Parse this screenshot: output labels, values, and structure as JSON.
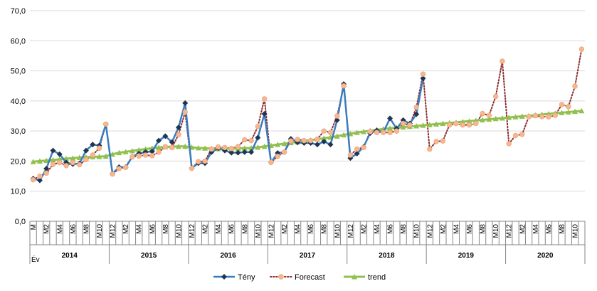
{
  "chart_data": {
    "type": "line",
    "ylim": [
      0,
      70
    ],
    "y_ticks": [
      "0,0",
      "10,0",
      "20,0",
      "30,0",
      "40,0",
      "50,0",
      "60,0",
      "70,0"
    ],
    "y_tick_values": [
      0,
      10,
      20,
      30,
      40,
      50,
      60,
      70
    ],
    "grid": true,
    "legend_position": "bottom",
    "x_axis_row_label": "Év",
    "years": [
      "2014",
      "2015",
      "2016",
      "2017",
      "2018",
      "2019",
      "2020"
    ],
    "month_labels": [
      "M",
      "",
      "M2",
      "",
      "M4",
      "",
      "M6",
      "",
      "M8",
      "",
      "M10",
      "",
      "M12",
      "",
      "M2",
      "",
      "M4",
      "",
      "M6",
      "",
      "M8",
      "",
      "M10",
      "",
      "M12",
      "",
      "M2",
      "",
      "M4",
      "",
      "M6",
      "",
      "M8",
      "",
      "M10",
      "",
      "M12",
      "",
      "M2",
      "",
      "M4",
      "",
      "M6",
      "",
      "M8",
      "",
      "M10",
      "",
      "M12",
      "",
      "M2",
      "",
      "M4",
      "",
      "M6",
      "",
      "M8",
      "",
      "M10",
      "",
      "M12",
      "",
      "M2",
      "",
      "M4",
      "",
      "M6",
      "",
      "M8",
      "",
      "M10",
      "",
      "M12",
      "",
      "M2",
      "",
      "M4",
      "",
      "M6",
      "",
      "M8",
      "",
      "M10",
      ""
    ],
    "series": [
      {
        "name": "Tény",
        "color": "#3a7cc0",
        "values": [
          14.2,
          13.6,
          17.5,
          23.5,
          22.3,
          19.5,
          19.0,
          19.2,
          23.5,
          25.5,
          25.2,
          32.2,
          15.9,
          18.0,
          18.0,
          21.5,
          22.5,
          23.0,
          23.2,
          26.8,
          28.3,
          26.3,
          31.2,
          39.3,
          17.7,
          19.3,
          19.3,
          23.0,
          24.3,
          23.5,
          22.8,
          22.8,
          23.0,
          23.0,
          27.8,
          35.7,
          19.6,
          22.7,
          23.0,
          27.4,
          26.2,
          26.0,
          26.0,
          25.5,
          26.5,
          25.5,
          33.6,
          45.6,
          21.0,
          22.5,
          24.7,
          29.3,
          30.2,
          29.6,
          34.2,
          30.8,
          33.6,
          32.5,
          35.6,
          47.5
        ]
      },
      {
        "name": "Forecast",
        "color": "#8b2c2c",
        "marker_color": "#f7b68d",
        "values": [
          13.8,
          15.0,
          16.0,
          18.9,
          19.5,
          18.5,
          19.5,
          18.8,
          20.5,
          22.0,
          24.3,
          32.3,
          15.7,
          17.5,
          17.9,
          21.4,
          21.7,
          22.0,
          21.8,
          23.0,
          24.8,
          24.5,
          28.8,
          36.3,
          17.6,
          19.8,
          20.0,
          24.0,
          24.7,
          24.5,
          24.2,
          24.8,
          27.1,
          26.8,
          31.5,
          40.7,
          19.6,
          21.6,
          23.0,
          26.7,
          27.2,
          26.8,
          26.8,
          27.3,
          30.0,
          29.5,
          35.0,
          45.0,
          22.0,
          24.0,
          24.5,
          29.8,
          29.5,
          29.5,
          29.5,
          30.0,
          32.5,
          32.0,
          37.9,
          48.9,
          24.0,
          26.5,
          26.7,
          32.0,
          32.5,
          32.0,
          32.0,
          32.5,
          35.8,
          35.2,
          41.5,
          53.2,
          25.8,
          28.5,
          28.9,
          34.7,
          35.1,
          34.8,
          34.7,
          35.2,
          38.8,
          38.1,
          44.9,
          57.2
        ]
      },
      {
        "name": "trend",
        "color": "#92c050",
        "values": [
          19.8,
          20.0,
          20.2,
          20.4,
          20.6,
          20.8,
          21.0,
          21.2,
          21.3,
          21.4,
          21.5,
          21.6,
          22.3,
          22.8,
          23.1,
          23.4,
          23.7,
          24.0,
          24.3,
          24.5,
          24.7,
          24.8,
          24.9,
          24.9,
          24.6,
          24.4,
          24.3,
          24.2,
          24.1,
          24.1,
          24.1,
          24.2,
          24.3,
          24.4,
          24.6,
          24.9,
          25.2,
          25.5,
          25.8,
          26.1,
          26.4,
          26.7,
          27.0,
          27.3,
          27.6,
          27.9,
          28.3,
          28.7,
          29.1,
          29.5,
          29.8,
          30.1,
          30.4,
          30.7,
          30.9,
          31.1,
          31.3,
          31.5,
          31.7,
          31.9,
          32.1,
          32.3,
          32.5,
          32.7,
          32.9,
          33.1,
          33.3,
          33.5,
          33.7,
          33.9,
          34.1,
          34.3,
          34.5,
          34.7,
          34.9,
          35.1,
          35.3,
          35.5,
          35.7,
          35.9,
          36.1,
          36.3,
          36.5,
          36.7
        ]
      }
    ]
  }
}
